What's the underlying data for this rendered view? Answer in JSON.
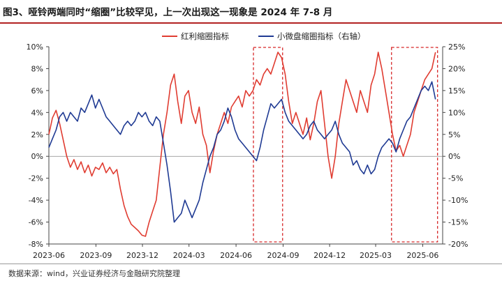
{
  "title": "图3、哑铃两端同时“缩圈”比较罕见，上一次出现这一现象是 2024 年 7-8 月",
  "source": "数据来源：wind，兴业证券经济与金融研究院整理",
  "colors": {
    "red": "#e03c31",
    "blue": "#1f3a93",
    "box": "#d62728",
    "title_rule": "#b22222"
  },
  "chart_data": {
    "type": "line",
    "xlim": [
      "2023-06-01",
      "2025-07-10"
    ],
    "x_ticks": [
      "2023-06",
      "2023-09",
      "2023-12",
      "2024-03",
      "2024-06",
      "2024-09",
      "2024-12",
      "2025-03",
      "2025-06"
    ],
    "y_left": {
      "lim": [
        -8,
        10
      ],
      "ticks": [
        -8,
        -6,
        -4,
        -2,
        0,
        2,
        4,
        6,
        8,
        10
      ],
      "tick_labels": [
        "-8%",
        "-6%",
        "-4%",
        "-2%",
        "0%",
        "2%",
        "4%",
        "6%",
        "8%",
        "10%"
      ]
    },
    "y_right": {
      "lim": [
        -20,
        25
      ],
      "ticks": [
        -20,
        -15,
        -10,
        -5,
        0,
        5,
        10,
        15,
        20,
        25
      ],
      "tick_labels": [
        "-20%",
        "-15%",
        "-10%",
        "-5%",
        "0%",
        "5%",
        "10%",
        "15%",
        "20%",
        "25%"
      ]
    },
    "legend_position": "top",
    "series": [
      {
        "name": "红利缩圈指标",
        "axis": "left",
        "color": "#e03c31",
        "points": [
          [
            "2023-06-01",
            2.0
          ],
          [
            "2023-06-08",
            3.5
          ],
          [
            "2023-06-15",
            4.2
          ],
          [
            "2023-06-22",
            3.0
          ],
          [
            "2023-06-29",
            1.5
          ],
          [
            "2023-07-06",
            0.0
          ],
          [
            "2023-07-13",
            -1.0
          ],
          [
            "2023-07-20",
            -0.3
          ],
          [
            "2023-07-27",
            -1.2
          ],
          [
            "2023-08-03",
            -0.5
          ],
          [
            "2023-08-10",
            -1.5
          ],
          [
            "2023-08-17",
            -0.8
          ],
          [
            "2023-08-24",
            -1.8
          ],
          [
            "2023-08-31",
            -1.0
          ],
          [
            "2023-09-07",
            -1.2
          ],
          [
            "2023-09-14",
            -0.6
          ],
          [
            "2023-09-21",
            -1.5
          ],
          [
            "2023-09-28",
            -1.0
          ],
          [
            "2023-10-05",
            -1.6
          ],
          [
            "2023-10-12",
            -1.2
          ],
          [
            "2023-10-19",
            -3.0
          ],
          [
            "2023-10-26",
            -4.5
          ],
          [
            "2023-11-02",
            -5.5
          ],
          [
            "2023-11-09",
            -6.2
          ],
          [
            "2023-11-16",
            -6.5
          ],
          [
            "2023-11-23",
            -6.8
          ],
          [
            "2023-11-30",
            -7.2
          ],
          [
            "2023-12-07",
            -7.3
          ],
          [
            "2023-12-14",
            -6.0
          ],
          [
            "2023-12-21",
            -5.0
          ],
          [
            "2023-12-28",
            -4.0
          ],
          [
            "2024-01-04",
            -1.0
          ],
          [
            "2024-01-11",
            2.0
          ],
          [
            "2024-01-18",
            4.0
          ],
          [
            "2024-01-25",
            6.5
          ],
          [
            "2024-02-01",
            7.5
          ],
          [
            "2024-02-08",
            5.0
          ],
          [
            "2024-02-15",
            3.0
          ],
          [
            "2024-02-22",
            5.5
          ],
          [
            "2024-02-29",
            6.0
          ],
          [
            "2024-03-07",
            4.0
          ],
          [
            "2024-03-14",
            3.0
          ],
          [
            "2024-03-21",
            4.5
          ],
          [
            "2024-03-28",
            2.0
          ],
          [
            "2024-04-04",
            1.0
          ],
          [
            "2024-04-11",
            -1.5
          ],
          [
            "2024-04-18",
            0.5
          ],
          [
            "2024-04-25",
            2.0
          ],
          [
            "2024-05-02",
            3.0
          ],
          [
            "2024-05-09",
            4.0
          ],
          [
            "2024-05-16",
            3.0
          ],
          [
            "2024-05-23",
            4.5
          ],
          [
            "2024-05-30",
            5.0
          ],
          [
            "2024-06-06",
            5.5
          ],
          [
            "2024-06-13",
            4.5
          ],
          [
            "2024-06-20",
            6.0
          ],
          [
            "2024-06-27",
            5.5
          ],
          [
            "2024-07-04",
            6.0
          ],
          [
            "2024-07-11",
            7.0
          ],
          [
            "2024-07-18",
            6.5
          ],
          [
            "2024-07-25",
            7.5
          ],
          [
            "2024-08-01",
            8.0
          ],
          [
            "2024-08-08",
            7.5
          ],
          [
            "2024-08-15",
            8.5
          ],
          [
            "2024-08-22",
            9.5
          ],
          [
            "2024-08-29",
            9.0
          ],
          [
            "2024-09-05",
            7.5
          ],
          [
            "2024-09-12",
            5.0
          ],
          [
            "2024-09-19",
            3.0
          ],
          [
            "2024-09-26",
            4.0
          ],
          [
            "2024-10-03",
            3.0
          ],
          [
            "2024-10-10",
            2.0
          ],
          [
            "2024-10-17",
            3.5
          ],
          [
            "2024-10-24",
            1.5
          ],
          [
            "2024-10-31",
            3.0
          ],
          [
            "2024-11-07",
            5.0
          ],
          [
            "2024-11-14",
            6.0
          ],
          [
            "2024-11-21",
            3.0
          ],
          [
            "2024-11-28",
            0.0
          ],
          [
            "2024-12-05",
            -2.0
          ],
          [
            "2024-12-12",
            0.0
          ],
          [
            "2024-12-19",
            3.0
          ],
          [
            "2024-12-26",
            5.0
          ],
          [
            "2025-01-02",
            7.0
          ],
          [
            "2025-01-09",
            6.0
          ],
          [
            "2025-01-16",
            5.0
          ],
          [
            "2025-01-23",
            4.0
          ],
          [
            "2025-01-30",
            6.0
          ],
          [
            "2025-02-06",
            5.0
          ],
          [
            "2025-02-13",
            4.0
          ],
          [
            "2025-02-20",
            6.5
          ],
          [
            "2025-02-27",
            7.5
          ],
          [
            "2025-03-06",
            9.5
          ],
          [
            "2025-03-13",
            8.0
          ],
          [
            "2025-03-20",
            6.0
          ],
          [
            "2025-03-27",
            4.0
          ],
          [
            "2025-04-03",
            2.0
          ],
          [
            "2025-04-10",
            0.5
          ],
          [
            "2025-04-17",
            1.0
          ],
          [
            "2025-04-24",
            0.0
          ],
          [
            "2025-05-01",
            1.0
          ],
          [
            "2025-05-08",
            2.0
          ],
          [
            "2025-05-15",
            4.0
          ],
          [
            "2025-05-22",
            5.0
          ],
          [
            "2025-05-29",
            6.0
          ],
          [
            "2025-06-05",
            7.0
          ],
          [
            "2025-06-12",
            7.5
          ],
          [
            "2025-06-19",
            8.0
          ],
          [
            "2025-06-26",
            9.5
          ]
        ]
      },
      {
        "name": "小微盘缩圈指标（右轴）",
        "axis": "right",
        "color": "#1f3a93",
        "points": [
          [
            "2023-06-01",
            2.0
          ],
          [
            "2023-06-08",
            4.0
          ],
          [
            "2023-06-15",
            6.0
          ],
          [
            "2023-06-22",
            9.0
          ],
          [
            "2023-06-29",
            10.0
          ],
          [
            "2023-07-06",
            8.0
          ],
          [
            "2023-07-13",
            10.0
          ],
          [
            "2023-07-20",
            9.0
          ],
          [
            "2023-07-27",
            8.0
          ],
          [
            "2023-08-03",
            11.0
          ],
          [
            "2023-08-10",
            10.0
          ],
          [
            "2023-08-17",
            12.0
          ],
          [
            "2023-08-24",
            14.0
          ],
          [
            "2023-08-31",
            11.0
          ],
          [
            "2023-09-07",
            13.0
          ],
          [
            "2023-09-14",
            11.0
          ],
          [
            "2023-09-21",
            9.0
          ],
          [
            "2023-09-28",
            8.0
          ],
          [
            "2023-10-05",
            7.0
          ],
          [
            "2023-10-12",
            6.0
          ],
          [
            "2023-10-19",
            5.0
          ],
          [
            "2023-10-26",
            7.0
          ],
          [
            "2023-11-02",
            8.0
          ],
          [
            "2023-11-09",
            7.0
          ],
          [
            "2023-11-16",
            8.0
          ],
          [
            "2023-11-23",
            10.0
          ],
          [
            "2023-11-30",
            9.0
          ],
          [
            "2023-12-07",
            10.0
          ],
          [
            "2023-12-14",
            8.0
          ],
          [
            "2023-12-21",
            7.0
          ],
          [
            "2023-12-28",
            9.0
          ],
          [
            "2024-01-04",
            8.0
          ],
          [
            "2024-01-11",
            3.0
          ],
          [
            "2024-01-18",
            -2.0
          ],
          [
            "2024-01-25",
            -8.0
          ],
          [
            "2024-02-01",
            -15.0
          ],
          [
            "2024-02-08",
            -14.0
          ],
          [
            "2024-02-15",
            -13.0
          ],
          [
            "2024-02-22",
            -10.0
          ],
          [
            "2024-02-29",
            -12.0
          ],
          [
            "2024-03-07",
            -14.0
          ],
          [
            "2024-03-14",
            -12.0
          ],
          [
            "2024-03-21",
            -10.0
          ],
          [
            "2024-03-28",
            -6.0
          ],
          [
            "2024-04-04",
            -3.0
          ],
          [
            "2024-04-11",
            0.0
          ],
          [
            "2024-04-18",
            2.0
          ],
          [
            "2024-04-25",
            5.0
          ],
          [
            "2024-05-02",
            6.0
          ],
          [
            "2024-05-09",
            8.0
          ],
          [
            "2024-05-16",
            11.0
          ],
          [
            "2024-05-23",
            9.0
          ],
          [
            "2024-05-30",
            6.0
          ],
          [
            "2024-06-06",
            4.0
          ],
          [
            "2024-06-13",
            3.0
          ],
          [
            "2024-06-20",
            2.0
          ],
          [
            "2024-06-27",
            1.0
          ],
          [
            "2024-07-04",
            0.0
          ],
          [
            "2024-07-11",
            -1.0
          ],
          [
            "2024-07-18",
            2.0
          ],
          [
            "2024-07-25",
            6.0
          ],
          [
            "2024-08-01",
            9.0
          ],
          [
            "2024-08-08",
            12.0
          ],
          [
            "2024-08-15",
            11.0
          ],
          [
            "2024-08-22",
            12.0
          ],
          [
            "2024-08-29",
            13.0
          ],
          [
            "2024-09-05",
            10.0
          ],
          [
            "2024-09-12",
            8.0
          ],
          [
            "2024-09-19",
            7.0
          ],
          [
            "2024-09-26",
            6.0
          ],
          [
            "2024-10-03",
            5.0
          ],
          [
            "2024-10-10",
            4.0
          ],
          [
            "2024-10-17",
            5.0
          ],
          [
            "2024-10-24",
            7.0
          ],
          [
            "2024-10-31",
            8.0
          ],
          [
            "2024-11-07",
            6.0
          ],
          [
            "2024-11-14",
            5.0
          ],
          [
            "2024-11-21",
            4.0
          ],
          [
            "2024-11-28",
            5.0
          ],
          [
            "2024-12-05",
            6.0
          ],
          [
            "2024-12-12",
            8.0
          ],
          [
            "2024-12-19",
            5.0
          ],
          [
            "2024-12-26",
            3.0
          ],
          [
            "2025-01-02",
            2.0
          ],
          [
            "2025-01-09",
            1.0
          ],
          [
            "2025-01-16",
            -2.0
          ],
          [
            "2025-01-23",
            -1.0
          ],
          [
            "2025-01-30",
            -3.0
          ],
          [
            "2025-02-06",
            -4.0
          ],
          [
            "2025-02-13",
            -2.0
          ],
          [
            "2025-02-20",
            -4.0
          ],
          [
            "2025-02-27",
            -3.0
          ],
          [
            "2025-03-06",
            0.0
          ],
          [
            "2025-03-13",
            2.0
          ],
          [
            "2025-03-20",
            3.0
          ],
          [
            "2025-03-27",
            4.0
          ],
          [
            "2025-04-03",
            3.0
          ],
          [
            "2025-04-10",
            1.0
          ],
          [
            "2025-04-17",
            4.0
          ],
          [
            "2025-04-24",
            6.0
          ],
          [
            "2025-05-01",
            8.0
          ],
          [
            "2025-05-08",
            9.0
          ],
          [
            "2025-05-15",
            11.0
          ],
          [
            "2025-05-22",
            13.0
          ],
          [
            "2025-05-29",
            15.0
          ],
          [
            "2025-06-05",
            16.0
          ],
          [
            "2025-06-12",
            15.0
          ],
          [
            "2025-06-19",
            17.0
          ],
          [
            "2025-06-26",
            13.0
          ]
        ]
      }
    ],
    "highlight_boxes": [
      {
        "from": "2024-07-05",
        "to": "2024-08-31"
      },
      {
        "from": "2025-04-01",
        "to": "2025-06-30"
      }
    ]
  }
}
